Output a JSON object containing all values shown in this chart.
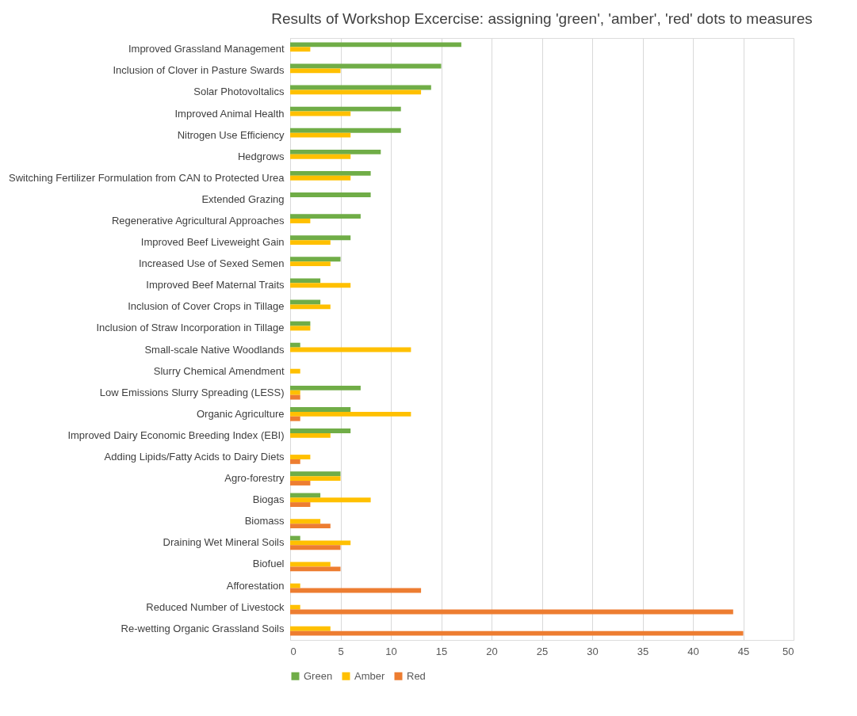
{
  "chart_data": {
    "type": "bar",
    "orientation": "horizontal",
    "title": "Results of Workshop Excercise: assigning 'green', 'amber', 'red' dots to measures",
    "categories": [
      "Improved Grassland Management",
      "Inclusion of Clover in Pasture Swards",
      "Solar Photovoltalics",
      "Improved Animal Health",
      "Nitrogen Use Efficiency",
      "Hedgrows",
      "Switching Fertilizer Formulation from CAN to Protected Urea",
      "Extended Grazing",
      "Regenerative Agricultural Approaches",
      "Improved Beef Liveweight Gain",
      "Increased Use of Sexed Semen",
      "Improved Beef Maternal Traits",
      "Inclusion of Cover Crops in Tillage",
      "Inclusion of Straw Incorporation in Tillage",
      "Small-scale Native Woodlands",
      "Slurry Chemical Amendment",
      "Low Emissions Slurry Spreading (LESS)",
      "Organic Agriculture",
      "Improved Dairy Economic Breeding Index (EBI)",
      "Adding Lipids/Fatty Acids to Dairy Diets",
      "Agro-forestry",
      "Biogas",
      "Biomass",
      "Draining Wet Mineral Soils",
      "Biofuel",
      "Afforestation",
      "Reduced Number of Livestock",
      "Re-wetting Organic Grassland Soils"
    ],
    "series": [
      {
        "name": "Green",
        "color": "#70ad47",
        "values": [
          17,
          15,
          14,
          11,
          11,
          9,
          8,
          8,
          7,
          6,
          5,
          3,
          3,
          2,
          1,
          null,
          7,
          6,
          6,
          null,
          5,
          3,
          null,
          1,
          null,
          null,
          null,
          null
        ]
      },
      {
        "name": "Amber",
        "color": "#ffc000",
        "values": [
          2,
          5,
          13,
          6,
          6,
          6,
          6,
          null,
          2,
          4,
          4,
          6,
          4,
          2,
          12,
          1,
          1,
          12,
          4,
          2,
          5,
          8,
          3,
          6,
          4,
          1,
          1,
          4
        ]
      },
      {
        "name": "Red",
        "color": "#ed7d31",
        "values": [
          null,
          null,
          null,
          null,
          null,
          null,
          null,
          null,
          null,
          null,
          null,
          null,
          null,
          null,
          null,
          null,
          1,
          1,
          null,
          1,
          2,
          2,
          4,
          5,
          5,
          13,
          44,
          45
        ]
      }
    ],
    "xlim": [
      0,
      50
    ],
    "xticks": [
      0,
      5,
      10,
      15,
      20,
      25,
      30,
      35,
      40,
      45,
      50
    ],
    "grid": "x",
    "legend": "bottom"
  }
}
